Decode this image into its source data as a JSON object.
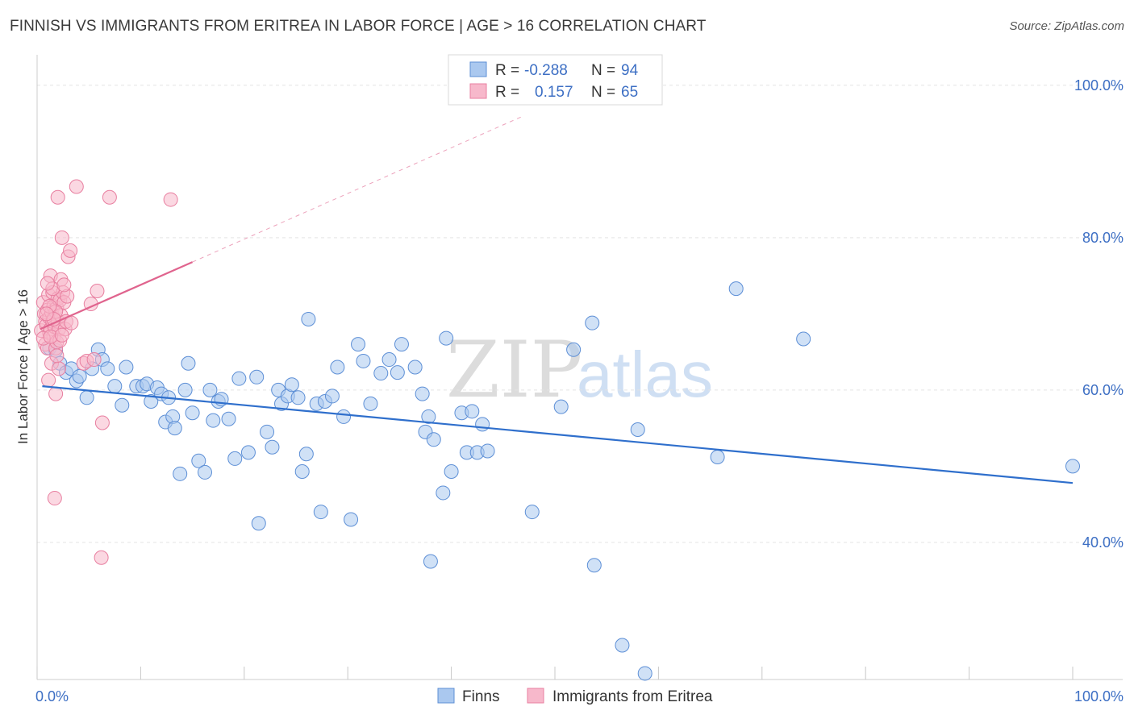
{
  "header": {
    "title": "FINNISH VS IMMIGRANTS FROM ERITREA IN LABOR FORCE | AGE > 16 CORRELATION CHART",
    "source": "Source: ZipAtlas.com"
  },
  "watermark": {
    "zip": "ZIP",
    "atlas": "atlas"
  },
  "colors": {
    "finns_fill": "#aac8ef",
    "finns_stroke": "#5d8fd6",
    "finns_line": "#2f6fcc",
    "eritrea_fill": "#f7b8cb",
    "eritrea_stroke": "#e87fa0",
    "eritrea_line": "#e0648e",
    "tick_text": "#3d6fc4",
    "grid": "#e3e3e3"
  },
  "legend_top": {
    "rows": [
      {
        "r_label": "R =",
        "r_value": "-0.288",
        "n_label": "N =",
        "n_value": "94"
      },
      {
        "r_label": "R =",
        "r_value": "0.157",
        "n_label": "N =",
        "n_value": "65"
      }
    ]
  },
  "chart_data": {
    "type": "scatter",
    "title": "FINNISH VS IMMIGRANTS FROM ERITREA IN LABOR FORCE | AGE > 16 CORRELATION CHART",
    "xlabel": "",
    "ylabel": "In Labor Force | Age > 16",
    "xlim": [
      0,
      100
    ],
    "ylim": [
      22,
      104
    ],
    "x_tick_labels": [
      "0.0%",
      "100.0%"
    ],
    "y_ticks": [
      40,
      60,
      80,
      100
    ],
    "y_tick_labels": [
      "40.0%",
      "60.0%",
      "80.0%",
      "100.0%"
    ],
    "grid": true,
    "legend_placement": "bottom",
    "series": [
      {
        "name": "Finns",
        "r": -0.288,
        "n": 94,
        "trend": {
          "x": [
            0.5,
            100
          ],
          "y": [
            60.5,
            47.8
          ]
        },
        "points": [
          [
            1.2,
            65.5
          ],
          [
            1.8,
            65.2
          ],
          [
            2.2,
            63.5
          ],
          [
            2.8,
            62.3
          ],
          [
            3.3,
            62.8
          ],
          [
            3.8,
            61.2
          ],
          [
            4.1,
            61.8
          ],
          [
            4.8,
            59.0
          ],
          [
            5.3,
            62.8
          ],
          [
            5.9,
            65.3
          ],
          [
            6.3,
            64.0
          ],
          [
            6.8,
            62.8
          ],
          [
            7.5,
            60.5
          ],
          [
            8.2,
            58.0
          ],
          [
            8.6,
            63.0
          ],
          [
            9.6,
            60.5
          ],
          [
            10.2,
            60.5
          ],
          [
            10.6,
            60.8
          ],
          [
            11.0,
            58.5
          ],
          [
            11.6,
            60.3
          ],
          [
            12.0,
            59.5
          ],
          [
            12.7,
            59.0
          ],
          [
            12.4,
            55.8
          ],
          [
            13.1,
            56.5
          ],
          [
            13.3,
            55.0
          ],
          [
            13.8,
            49.0
          ],
          [
            14.3,
            60.0
          ],
          [
            14.6,
            63.5
          ],
          [
            15.0,
            57.0
          ],
          [
            15.6,
            50.7
          ],
          [
            16.2,
            49.2
          ],
          [
            16.7,
            60.0
          ],
          [
            17.0,
            56.0
          ],
          [
            17.5,
            58.5
          ],
          [
            17.8,
            58.8
          ],
          [
            18.5,
            56.2
          ],
          [
            19.1,
            51.0
          ],
          [
            19.5,
            61.5
          ],
          [
            20.4,
            51.8
          ],
          [
            21.2,
            61.7
          ],
          [
            21.4,
            42.5
          ],
          [
            22.7,
            52.5
          ],
          [
            22.2,
            54.5
          ],
          [
            23.3,
            60.0
          ],
          [
            23.6,
            58.2
          ],
          [
            24.2,
            59.2
          ],
          [
            24.6,
            60.7
          ],
          [
            25.2,
            59.0
          ],
          [
            25.6,
            49.3
          ],
          [
            26.0,
            51.6
          ],
          [
            26.2,
            69.3
          ],
          [
            27.0,
            58.2
          ],
          [
            27.4,
            44.0
          ],
          [
            27.8,
            58.5
          ],
          [
            28.5,
            59.2
          ],
          [
            29.0,
            63.0
          ],
          [
            29.6,
            56.5
          ],
          [
            30.3,
            43.0
          ],
          [
            31.0,
            66.0
          ],
          [
            31.5,
            63.8
          ],
          [
            32.2,
            58.2
          ],
          [
            33.2,
            62.2
          ],
          [
            34.0,
            64.0
          ],
          [
            34.8,
            62.3
          ],
          [
            35.2,
            66.0
          ],
          [
            36.5,
            63.0
          ],
          [
            37.2,
            59.5
          ],
          [
            37.5,
            54.5
          ],
          [
            37.8,
            56.5
          ],
          [
            38.3,
            53.5
          ],
          [
            38.0,
            37.5
          ],
          [
            39.2,
            46.5
          ],
          [
            39.5,
            66.8
          ],
          [
            40.0,
            49.3
          ],
          [
            41.0,
            57.0
          ],
          [
            41.5,
            51.8
          ],
          [
            42.0,
            57.2
          ],
          [
            42.5,
            51.8
          ],
          [
            43.0,
            55.5
          ],
          [
            43.5,
            52.0
          ],
          [
            47.8,
            44.0
          ],
          [
            50.6,
            57.8
          ],
          [
            51.8,
            65.3
          ],
          [
            53.6,
            68.8
          ],
          [
            53.8,
            37.0
          ],
          [
            56.5,
            26.5
          ],
          [
            58.0,
            54.8
          ],
          [
            58.7,
            22.8
          ],
          [
            65.7,
            51.2
          ],
          [
            67.5,
            73.3
          ],
          [
            74.0,
            66.7
          ],
          [
            100.0,
            50.0
          ]
        ]
      },
      {
        "name": "Immigrants from Eritrea",
        "r": 0.157,
        "n": 65,
        "trend": {
          "x": [
            0.3,
            15
          ],
          "y": [
            68.0,
            76.8
          ]
        },
        "trend_extension": {
          "x": [
            15,
            47
          ],
          "y": [
            76.8,
            96.0
          ]
        },
        "points": [
          [
            0.4,
            67.8
          ],
          [
            0.6,
            71.5
          ],
          [
            0.7,
            70.0
          ],
          [
            0.8,
            69.0
          ],
          [
            0.8,
            66.0
          ],
          [
            0.9,
            68.5
          ],
          [
            1.0,
            70.5
          ],
          [
            1.0,
            65.5
          ],
          [
            1.1,
            72.5
          ],
          [
            1.1,
            61.3
          ],
          [
            1.2,
            69.5
          ],
          [
            1.2,
            67.5
          ],
          [
            1.3,
            68.0
          ],
          [
            1.3,
            75.0
          ],
          [
            1.4,
            70.2
          ],
          [
            1.4,
            63.5
          ],
          [
            1.5,
            72.8
          ],
          [
            1.5,
            69.0
          ],
          [
            1.6,
            71.0
          ],
          [
            1.6,
            67.0
          ],
          [
            1.7,
            68.3
          ],
          [
            1.7,
            45.8
          ],
          [
            1.8,
            65.5
          ],
          [
            1.8,
            59.5
          ],
          [
            1.9,
            70.8
          ],
          [
            1.9,
            66.3
          ],
          [
            2.0,
            69.0
          ],
          [
            2.0,
            72.0
          ],
          [
            2.1,
            68.0
          ],
          [
            2.1,
            62.8
          ],
          [
            2.2,
            71.8
          ],
          [
            2.2,
            66.5
          ],
          [
            2.3,
            69.8
          ],
          [
            2.3,
            74.5
          ],
          [
            2.4,
            80.0
          ],
          [
            2.5,
            72.8
          ],
          [
            2.6,
            71.5
          ],
          [
            2.7,
            68.0
          ],
          [
            2.8,
            69.0
          ],
          [
            2.9,
            72.3
          ],
          [
            3.0,
            77.5
          ],
          [
            3.2,
            78.3
          ],
          [
            3.3,
            68.8
          ],
          [
            2.0,
            85.3
          ],
          [
            3.8,
            86.7
          ],
          [
            4.5,
            63.5
          ],
          [
            4.8,
            63.8
          ],
          [
            5.2,
            71.3
          ],
          [
            5.5,
            64.0
          ],
          [
            5.8,
            73.0
          ],
          [
            6.3,
            55.7
          ],
          [
            6.2,
            38.0
          ],
          [
            7.0,
            85.3
          ],
          [
            12.9,
            85.0
          ],
          [
            1.5,
            73.3
          ],
          [
            1.0,
            74.0
          ],
          [
            0.6,
            66.8
          ],
          [
            1.3,
            67.0
          ],
          [
            2.6,
            73.8
          ],
          [
            1.8,
            70.3
          ],
          [
            1.6,
            69.3
          ],
          [
            2.4,
            67.2
          ],
          [
            1.2,
            71.0
          ],
          [
            1.9,
            64.5
          ],
          [
            0.9,
            70.0
          ]
        ]
      }
    ]
  },
  "legend_bottom": {
    "items": [
      "Finns",
      "Immigrants from Eritrea"
    ]
  }
}
